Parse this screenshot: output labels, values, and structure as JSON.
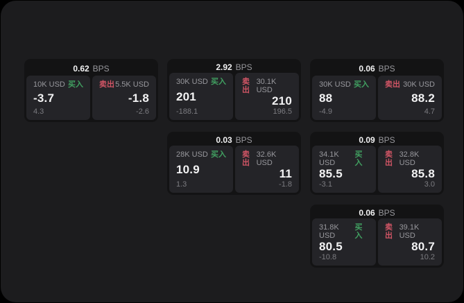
{
  "labels": {
    "bps_unit": "BPS",
    "buy": "买入",
    "sell": "卖出"
  },
  "colors": {
    "panel_bg": "#1c1c1e",
    "card_bg": "#131314",
    "tile_bg": "#242428",
    "buy_green": "#41a061",
    "sell_red": "#d05565",
    "text_primary": "#f2f2f3",
    "text_secondary": "#98989d",
    "text_tertiary": "#7c7c81"
  },
  "cards": [
    {
      "bps": "0.62",
      "grid": {
        "row": 1,
        "col": 1
      },
      "buy": {
        "size": "10K USD",
        "price": "-3.7",
        "delta": "4.3"
      },
      "sell": {
        "size": "5.5K USD",
        "price": "-1.8",
        "delta": "-2.6"
      }
    },
    {
      "bps": "2.92",
      "grid": {
        "row": 1,
        "col": 2
      },
      "buy": {
        "size": "30K USD",
        "price": "201",
        "delta": "-188.1"
      },
      "sell": {
        "size": "30.1K USD",
        "price": "210",
        "delta": "196.5"
      }
    },
    {
      "bps": "0.06",
      "grid": {
        "row": 1,
        "col": 3
      },
      "buy": {
        "size": "30K USD",
        "price": "88",
        "delta": "-4.9"
      },
      "sell": {
        "size": "30K USD",
        "price": "88.2",
        "delta": "4.7"
      }
    },
    {
      "bps": "0.03",
      "grid": {
        "row": 2,
        "col": 2
      },
      "buy": {
        "size": "28K USD",
        "price": "10.9",
        "delta": "1.3"
      },
      "sell": {
        "size": "32.6K USD",
        "price": "11",
        "delta": "-1.8"
      }
    },
    {
      "bps": "0.09",
      "grid": {
        "row": 2,
        "col": 3
      },
      "buy": {
        "size": "34.1K USD",
        "price": "85.5",
        "delta": "-3.1"
      },
      "sell": {
        "size": "32.8K USD",
        "price": "85.8",
        "delta": "3.0"
      }
    },
    {
      "bps": "0.06",
      "grid": {
        "row": 3,
        "col": 3
      },
      "buy": {
        "size": "31.8K USD",
        "price": "80.5",
        "delta": "-10.8"
      },
      "sell": {
        "size": "39.1K USD",
        "price": "80.7",
        "delta": "10.2"
      }
    }
  ]
}
